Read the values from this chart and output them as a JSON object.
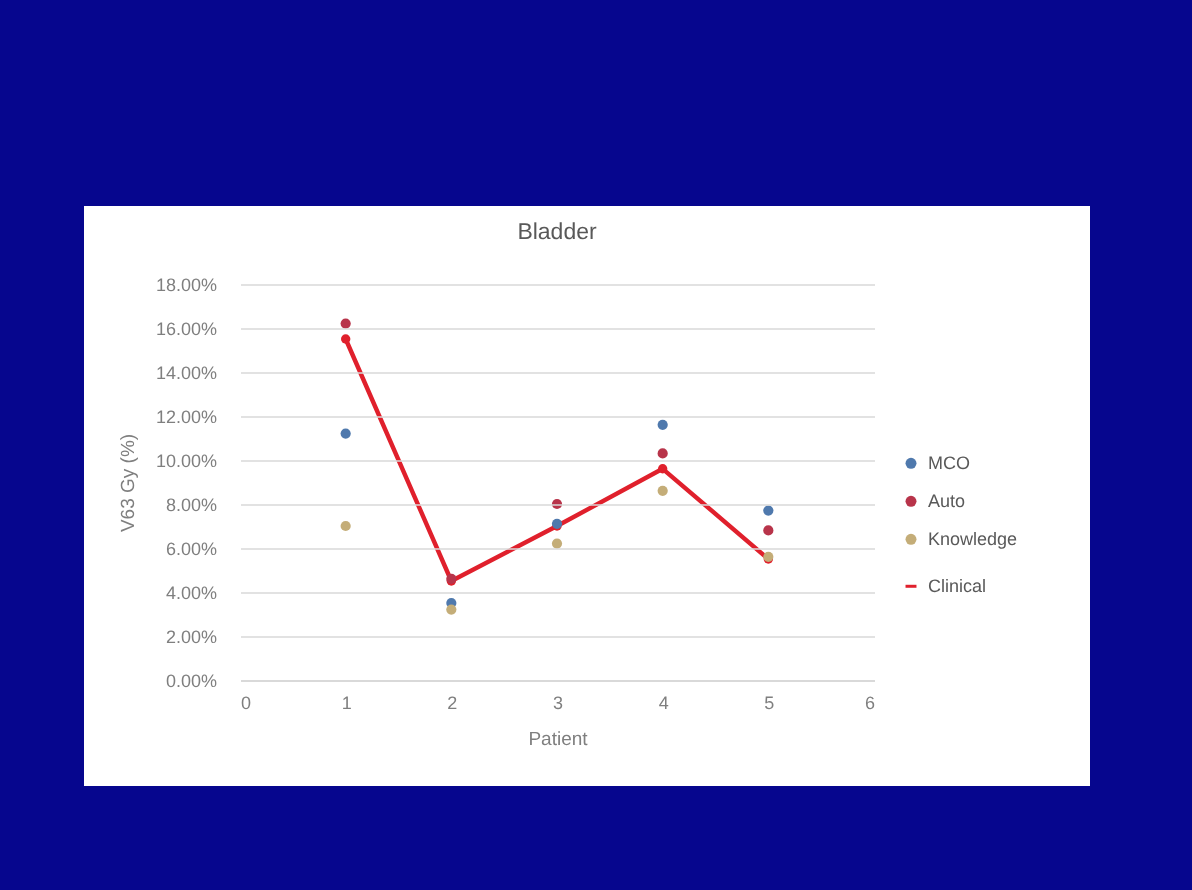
{
  "chart_data": {
    "type": "scatter",
    "title": "Bladder",
    "xlabel": "Patient",
    "ylabel": "V63 Gy (%)",
    "x": [
      1,
      2,
      3,
      4,
      5
    ],
    "xlim": [
      0,
      6
    ],
    "xticks": [
      0,
      1,
      2,
      3,
      4,
      5,
      6
    ],
    "ylim": [
      0,
      18
    ],
    "yticks": [
      {
        "value": 0,
        "label": "0.00%"
      },
      {
        "value": 2,
        "label": "2.00%"
      },
      {
        "value": 4,
        "label": "4.00%"
      },
      {
        "value": 6,
        "label": "6.00%"
      },
      {
        "value": 8,
        "label": "8.00%"
      },
      {
        "value": 10,
        "label": "10.00%"
      },
      {
        "value": 12,
        "label": "12.00%"
      },
      {
        "value": 14,
        "label": "14.00%"
      },
      {
        "value": 16,
        "label": "16.00%"
      },
      {
        "value": 18,
        "label": "18.00%"
      }
    ],
    "grid": "y",
    "legend": "right",
    "marker": "circle",
    "line_style": "solid",
    "series": [
      {
        "name": "MCO",
        "color": "#4f79ad",
        "values": [
          11.2,
          3.5,
          7.1,
          11.6,
          7.7
        ]
      },
      {
        "name": "Auto",
        "color": "#b8344a",
        "values": [
          16.2,
          4.6,
          8.0,
          10.3,
          6.8
        ]
      },
      {
        "name": "Knowledge",
        "color": "#c4ad78",
        "values": [
          7.0,
          3.2,
          6.2,
          8.6,
          5.6
        ]
      },
      {
        "name": "Clinical",
        "type": "line",
        "color": "#e0202c",
        "values": [
          15.5,
          4.5,
          7.0,
          9.6,
          5.5
        ]
      }
    ]
  }
}
